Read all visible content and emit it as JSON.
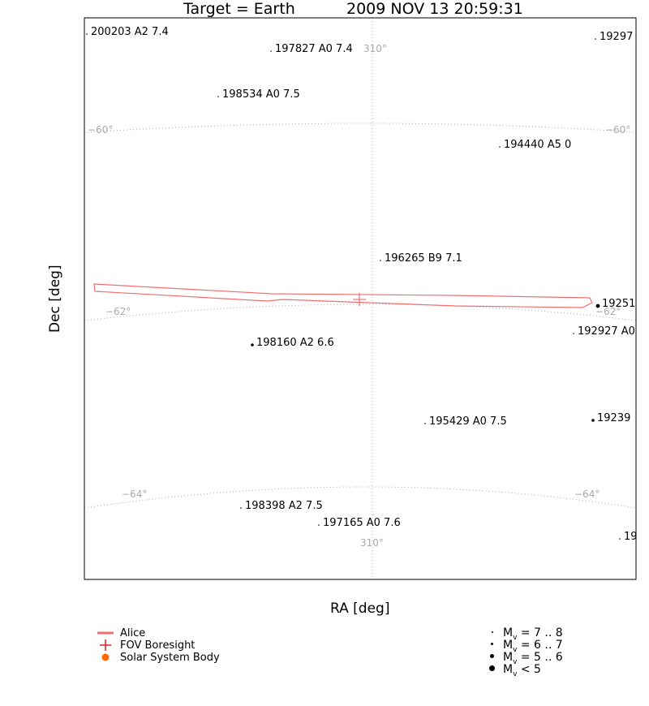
{
  "header": {
    "target": "Target = Earth",
    "datetime": "2009 NOV 13 20:59:31"
  },
  "chart_data": {
    "type": "scatter",
    "title": "Target = Earth      2009 NOV 13 20:59:31",
    "xlabel": "RA [deg]",
    "ylabel": "Dec [deg]",
    "grid": true,
    "grid_labels": {
      "ra": [
        {
          "label": "310°"
        },
        {
          "label": "310°"
        }
      ],
      "dec": [
        {
          "label": "−60°"
        },
        {
          "label": "−60°"
        },
        {
          "label": "−62°"
        },
        {
          "label": "−62°"
        },
        {
          "label": "−64°"
        },
        {
          "label": "−64°"
        }
      ]
    },
    "stars": [
      {
        "label": "200203 A2 7.4",
        "size": "small"
      },
      {
        "label": "197827 A0 7.4",
        "size": "small"
      },
      {
        "label": "19297",
        "size": "small"
      },
      {
        "label": "198534 A0 7.5",
        "size": "small"
      },
      {
        "label": "194440 A5 0",
        "size": "small"
      },
      {
        "label": "196265 B9 7.1",
        "size": "small"
      },
      {
        "label": "19251",
        "size": "large"
      },
      {
        "label": "192927 A0",
        "size": "small"
      },
      {
        "label": "198160 A2 6.6",
        "size": "medium"
      },
      {
        "label": "195429 A0 7.5",
        "size": "small"
      },
      {
        "label": "19239",
        "size": "medium"
      },
      {
        "label": "198398 A2 7.5",
        "size": "small"
      },
      {
        "label": "197165 A0 7.6",
        "size": "small"
      },
      {
        "label": "19",
        "size": "small"
      }
    ],
    "boresight_label": "FOV Boresight",
    "instrument": "Alice"
  },
  "legend": {
    "alice": "Alice",
    "boresight": "FOV Boresight",
    "solar_body": "Solar System Body",
    "mag": [
      {
        "text": "M",
        "sub": "v",
        "range": " = 7 .. 8"
      },
      {
        "text": "M",
        "sub": "v",
        "range": " = 6 .. 7"
      },
      {
        "text": "M",
        "sub": "v",
        "range": " = 5 .. 6"
      },
      {
        "text": "M",
        "sub": "v",
        "range": " < 5"
      }
    ]
  },
  "colors": {
    "fov": "#f07070",
    "grid": "#aaaaaa",
    "solar": "#ff6a00"
  }
}
